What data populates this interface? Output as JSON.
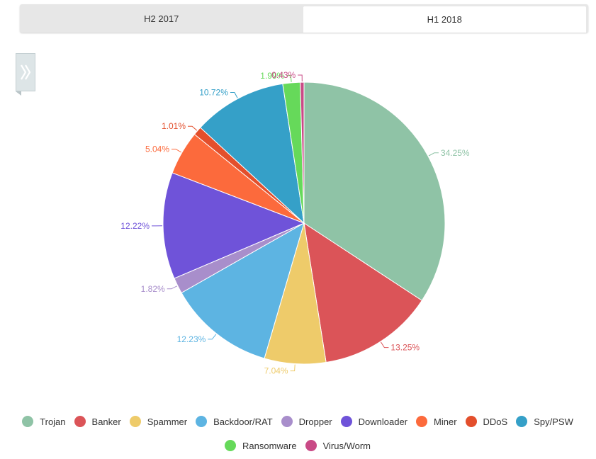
{
  "tabs": [
    {
      "label": "H2 2017",
      "active": false
    },
    {
      "label": "H1 2018",
      "active": true
    }
  ],
  "toggle_icon": "double-chevron-right-icon",
  "chart_data": {
    "type": "pie",
    "title": "",
    "legend_placement": "bottom",
    "series": [
      {
        "name": "Trojan",
        "value": 34.25,
        "label": "34.25%",
        "color": "#8fc3a6"
      },
      {
        "name": "Banker",
        "value": 13.25,
        "label": "13.25%",
        "color": "#db5458"
      },
      {
        "name": "Spammer",
        "value": 7.04,
        "label": "7.04%",
        "color": "#eecb6a"
      },
      {
        "name": "Backdoor/RAT",
        "value": 12.23,
        "label": "12.23%",
        "color": "#5db4e2"
      },
      {
        "name": "Dropper",
        "value": 1.82,
        "label": "1.82%",
        "color": "#a88ecb"
      },
      {
        "name": "Downloader",
        "value": 12.22,
        "label": "12.22%",
        "color": "#6f53d9"
      },
      {
        "name": "Miner",
        "value": 5.04,
        "label": "5.04%",
        "color": "#fc6a3c"
      },
      {
        "name": "DDoS",
        "value": 1.01,
        "label": "1.01%",
        "color": "#e34f2c"
      },
      {
        "name": "Spy/PSW",
        "value": 10.72,
        "label": "10.72%",
        "color": "#35a0c8"
      },
      {
        "name": "Ransomware",
        "value": 1.99,
        "label": "1.99%",
        "color": "#66d95a"
      },
      {
        "name": "Virus/Worm",
        "value": 0.43,
        "label": "0.43%",
        "color": "#c94a86"
      }
    ]
  }
}
